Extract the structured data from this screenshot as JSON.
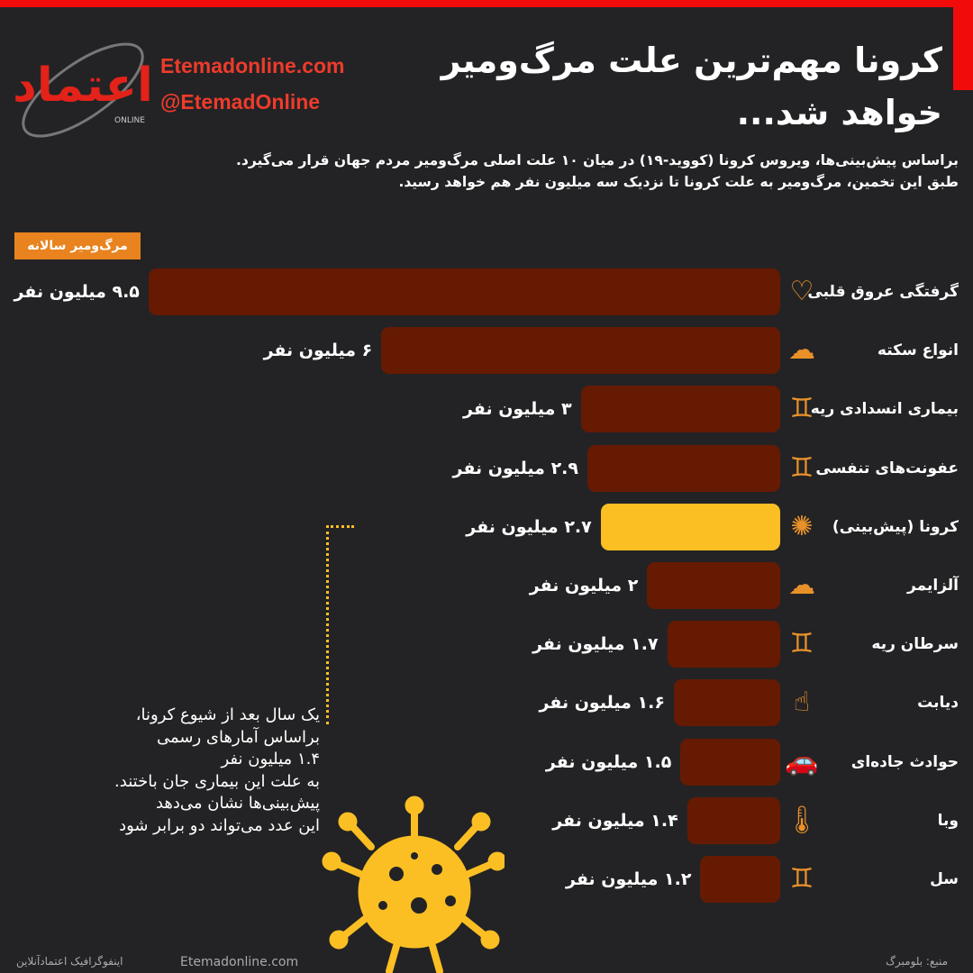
{
  "header": {
    "title_line1": "کرونا مهم‌ترین علت مرگ‌ومیر",
    "title_line2": "خواهد شد...",
    "site": "Etemadonline.com",
    "handle": "@EtemadOnline",
    "logo_text": "اعتماد ONLINE"
  },
  "intro": {
    "line1": "براساس پیش‌بینی‌ها، ویروس کرونا (کووید-۱۹) در میان ۱۰ علت اصلی مرگ‌ومیر مردم جهان قرار می‌گیرد.",
    "line2": "طبق این تخمین، مرگ‌ومیر به علت کرونا تا نزدیک سه میلیون نفر هم خواهد رسید."
  },
  "colors": {
    "bar": "#661a02",
    "highlight": "#fbbf24",
    "accent": "#e8831f",
    "brand_red": "#f20b0b",
    "icon": "#e8912a",
    "background": "#232325"
  },
  "chart_data": {
    "type": "bar",
    "orientation": "horizontal",
    "title": "",
    "legend": "مرگ‌ومیر سالانه",
    "xlim": [
      0,
      10
    ],
    "unit": "million people",
    "categories": [
      "گرفتگی عروق قلبی",
      "انواع سکته",
      "بیماری انسدادی ریه",
      "عفونت‌های تنفسی",
      "کرونا (پیش‌بینی)",
      "آلزایمر",
      "سرطان ریه",
      "دیابت",
      "حوادث جاده‌ای",
      "وبا",
      "سل"
    ],
    "values": [
      9.5,
      6,
      3,
      2.9,
      2.7,
      2,
      1.7,
      1.6,
      1.5,
      1.4,
      1.2
    ],
    "labels": [
      "۹.۵ میلیون نفر",
      "۶ میلیون نفر",
      "۳ میلیون نفر",
      "۲.۹ میلیون نفر",
      "۲.۷ میلیون نفر",
      "۲ میلیون نفر",
      "۱.۷ میلیون نفر",
      "۱.۶ میلیون نفر",
      "۱.۵ میلیون نفر",
      "۱.۴ میلیون نفر",
      "۱.۲ میلیون نفر"
    ],
    "icons": [
      "heart-icon",
      "brain-icon",
      "lungs-icon",
      "lungs-icon",
      "virus-icon",
      "brain-icon",
      "lungs-icon",
      "finger-icon",
      "car-icon",
      "thermometer-icon",
      "lungs-icon"
    ],
    "highlight_index": 4
  },
  "note": {
    "lines": [
      "یک سال بعد از شیوع کرونا،",
      "براساس آمارهای رسمی",
      "۱.۴ میلیون نفر",
      "به علت این بیماری جان باختند.",
      "پیش‌بینی‌ها نشان می‌دهد",
      "این عدد می‌تواند دو برابر شود"
    ]
  },
  "footer": {
    "source": "منبع: بلومبرگ",
    "site": "Etemadonline.com",
    "credit": "اینفوگرافیک اعتمادآنلاین"
  }
}
